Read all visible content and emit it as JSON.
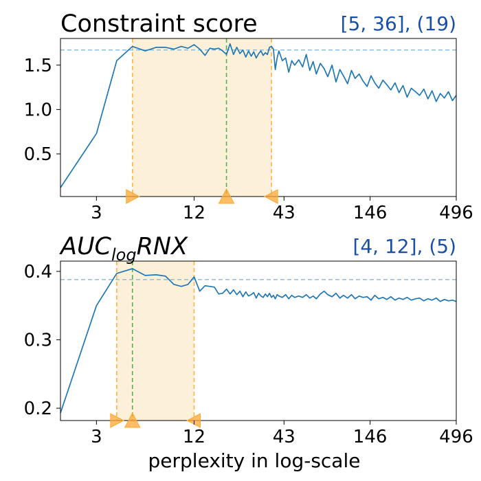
{
  "chart_data": [
    {
      "type": "line",
      "title": "Constraint score",
      "annotation": "[5, 36], (19)",
      "xscale": "log",
      "x_ticks": [
        "3",
        "12",
        "43",
        "146",
        "496"
      ],
      "x_tick_values": [
        3,
        12,
        43,
        146,
        496
      ],
      "y_ticks": [
        "0.5",
        "1.0",
        "1.5"
      ],
      "y_tick_values": [
        0.5,
        1.0,
        1.5
      ],
      "xlim": [
        1.8,
        496
      ],
      "ylim": [
        0.02,
        1.8
      ],
      "threshold": 1.67,
      "range": [
        5,
        36
      ],
      "best": 19,
      "colors": {
        "line": "#1f77b4",
        "threshold": "#8fbcd9",
        "span_fill": "#fdf0d9",
        "span_edge": "#ffb347",
        "best": "#5aaa5a",
        "marker": "#ffa733"
      },
      "series": [
        {
          "x": [
            1.8,
            3,
            4,
            5,
            6,
            7,
            8,
            9,
            10,
            11,
            12,
            13,
            14,
            15,
            16,
            17,
            18,
            19,
            20,
            21,
            22,
            23,
            24,
            25,
            26,
            27,
            28,
            29,
            30,
            31,
            32,
            33,
            34,
            35,
            36,
            37,
            38,
            39,
            40,
            42,
            44,
            46,
            48,
            50,
            53,
            56,
            59,
            62,
            65,
            68,
            72,
            76,
            80,
            85,
            90,
            95,
            100,
            106,
            112,
            118,
            125,
            132,
            140,
            148,
            156,
            165,
            175,
            185,
            196,
            208,
            220,
            233,
            247,
            262,
            278,
            295,
            313,
            332,
            352,
            373,
            395,
            419,
            444,
            470,
            496
          ],
          "y": [
            0.12,
            0.73,
            1.55,
            1.71,
            1.66,
            1.7,
            1.7,
            1.68,
            1.71,
            1.69,
            1.73,
            1.68,
            1.61,
            1.69,
            1.68,
            1.69,
            1.66,
            1.62,
            1.74,
            1.62,
            1.7,
            1.63,
            1.67,
            1.59,
            1.66,
            1.6,
            1.65,
            1.58,
            1.63,
            1.66,
            1.61,
            1.64,
            1.62,
            1.7,
            1.71,
            1.68,
            1.45,
            1.58,
            1.66,
            1.55,
            1.58,
            1.42,
            1.55,
            1.5,
            1.56,
            1.48,
            1.62,
            1.44,
            1.54,
            1.4,
            1.52,
            1.46,
            1.37,
            1.5,
            1.31,
            1.45,
            1.38,
            1.29,
            1.44,
            1.35,
            1.4,
            1.32,
            1.26,
            1.38,
            1.3,
            1.24,
            1.33,
            1.28,
            1.22,
            1.3,
            1.19,
            1.27,
            1.14,
            1.24,
            1.2,
            1.16,
            1.23,
            1.12,
            1.21,
            1.09,
            1.18,
            1.13,
            1.2,
            1.1,
            1.16
          ]
        }
      ]
    },
    {
      "type": "line",
      "title": "AUC",
      "title_sub": "log",
      "title_suffix": "RNX",
      "annotation": "[4, 12], (5)",
      "xlabel": "perplexity in log-scale",
      "xscale": "log",
      "x_ticks": [
        "3",
        "12",
        "43",
        "146",
        "496"
      ],
      "x_tick_values": [
        3,
        12,
        43,
        146,
        496
      ],
      "y_ticks": [
        "0.2",
        "0.3",
        "0.4"
      ],
      "y_tick_values": [
        0.2,
        0.3,
        0.4
      ],
      "xlim": [
        1.8,
        496
      ],
      "ylim": [
        0.182,
        0.415
      ],
      "threshold": 0.388,
      "range": [
        4,
        12
      ],
      "best": 5,
      "colors": {
        "line": "#1f77b4",
        "threshold": "#8fbcd9",
        "span_fill": "#fdf0d9",
        "span_edge": "#ffb347",
        "best": "#5aaa5a",
        "marker": "#ffa733"
      },
      "series": [
        {
          "x": [
            1.8,
            3,
            4,
            5,
            6,
            7,
            8,
            9,
            10,
            11,
            12,
            13,
            14,
            15,
            16,
            17,
            18,
            19,
            20,
            21,
            22,
            23,
            24,
            25,
            26,
            27,
            28,
            29,
            30,
            31,
            32,
            33,
            34,
            35,
            36,
            37,
            38,
            39,
            40,
            42,
            44,
            46,
            48,
            50,
            53,
            56,
            59,
            62,
            65,
            68,
            72,
            76,
            80,
            85,
            90,
            95,
            100,
            106,
            112,
            118,
            125,
            132,
            140,
            148,
            156,
            165,
            175,
            185,
            196,
            208,
            220,
            233,
            247,
            262,
            278,
            295,
            313,
            332,
            352,
            373,
            395,
            419,
            444,
            470,
            496
          ],
          "y": [
            0.193,
            0.35,
            0.397,
            0.404,
            0.394,
            0.395,
            0.393,
            0.381,
            0.378,
            0.381,
            0.392,
            0.371,
            0.379,
            0.378,
            0.377,
            0.367,
            0.368,
            0.374,
            0.367,
            0.373,
            0.366,
            0.371,
            0.363,
            0.37,
            0.364,
            0.366,
            0.369,
            0.361,
            0.368,
            0.364,
            0.362,
            0.367,
            0.363,
            0.368,
            0.362,
            0.365,
            0.36,
            0.366,
            0.364,
            0.362,
            0.366,
            0.36,
            0.365,
            0.362,
            0.364,
            0.362,
            0.366,
            0.361,
            0.364,
            0.36,
            0.367,
            0.371,
            0.366,
            0.363,
            0.368,
            0.361,
            0.365,
            0.361,
            0.366,
            0.36,
            0.364,
            0.362,
            0.363,
            0.358,
            0.365,
            0.36,
            0.362,
            0.359,
            0.363,
            0.358,
            0.361,
            0.359,
            0.362,
            0.358,
            0.36,
            0.361,
            0.357,
            0.36,
            0.358,
            0.361,
            0.356,
            0.359,
            0.357,
            0.358,
            0.356
          ]
        }
      ]
    }
  ]
}
